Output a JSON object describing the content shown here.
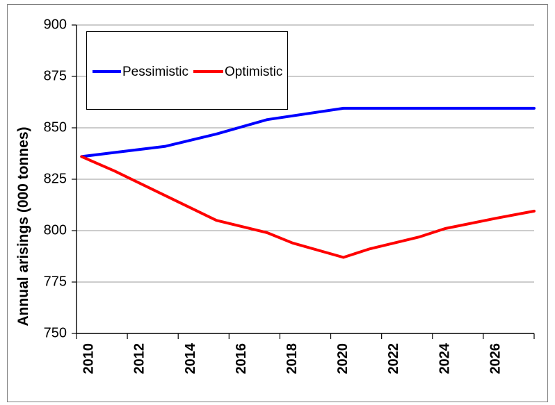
{
  "chart_data": {
    "type": "line",
    "title": "",
    "xlabel": "",
    "ylabel": "Annual arisings (000 tonnes)",
    "ylim": [
      750,
      900
    ],
    "yticks": [
      750,
      775,
      800,
      825,
      850,
      875,
      900
    ],
    "xlim": [
      2009.5,
      2027.5
    ],
    "xticks": [
      2010,
      2012,
      2014,
      2016,
      2018,
      2020,
      2022,
      2024,
      2026
    ],
    "grid": "horizontal",
    "legend_position": "top-left",
    "series": [
      {
        "name": "Pessimistic",
        "color": "#0000ff",
        "points": [
          [
            2009.7,
            836
          ],
          [
            2011,
            838
          ],
          [
            2013,
            841
          ],
          [
            2015,
            847
          ],
          [
            2017,
            854
          ],
          [
            2020,
            859.5
          ],
          [
            2027.5,
            859.5
          ]
        ]
      },
      {
        "name": "Optimistic",
        "color": "#ff0000",
        "points": [
          [
            2009.7,
            836
          ],
          [
            2011,
            829
          ],
          [
            2013,
            817
          ],
          [
            2014,
            811
          ],
          [
            2015,
            805
          ],
          [
            2017,
            799
          ],
          [
            2018,
            794
          ],
          [
            2020,
            787
          ],
          [
            2021,
            791
          ],
          [
            2023,
            797
          ],
          [
            2024,
            801
          ],
          [
            2026,
            806
          ],
          [
            2027.5,
            809.5
          ]
        ]
      }
    ]
  }
}
